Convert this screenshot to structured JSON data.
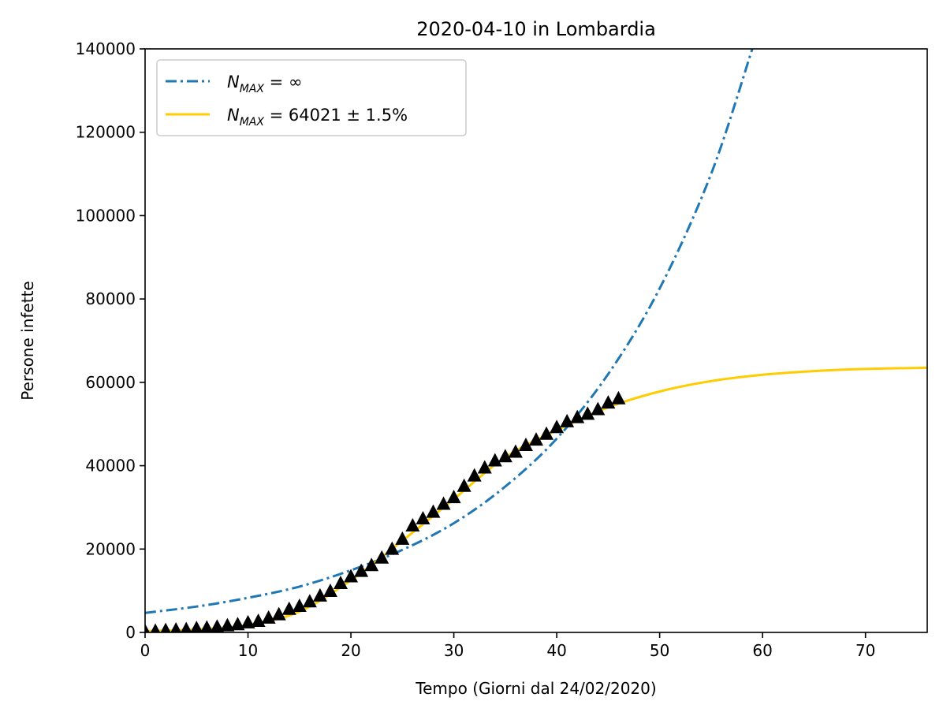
{
  "chart_data": {
    "type": "line",
    "title": "2020-04-10 in Lombardia",
    "xlabel": "Tempo (Giorni dal 24/02/2020)",
    "ylabel": "Persone infette",
    "xlim": [
      0,
      76
    ],
    "ylim": [
      0,
      140000
    ],
    "xticks": [
      0,
      10,
      20,
      30,
      40,
      50,
      60,
      70
    ],
    "yticks": [
      0,
      20000,
      40000,
      60000,
      80000,
      100000,
      120000,
      140000
    ],
    "grid": false,
    "legend_position": "top-left",
    "series": [
      {
        "name_main": "N",
        "name_sub": "MAX",
        "name_rest": " = ∞",
        "style": "dashdot",
        "color": "#1f77b4",
        "x": [
          0,
          5,
          10,
          15,
          20,
          25,
          30,
          35,
          40,
          45,
          50,
          55,
          59
        ],
        "y": [
          4700,
          6200,
          8300,
          11000,
          14900,
          19800,
          26200,
          35000,
          46500,
          62000,
          82500,
          110000,
          140000
        ]
      },
      {
        "name_main": "N",
        "name_sub": "MAX",
        "name_rest": " = 64021 ± 1.5%",
        "style": "solid",
        "color": "#ffcc00",
        "x": [
          0,
          5,
          10,
          15,
          20,
          25,
          30,
          35,
          40,
          45,
          50,
          55,
          60,
          65,
          70,
          76
        ],
        "y": [
          300,
          700,
          1800,
          5000,
          12500,
          22000,
          32000,
          42000,
          48500,
          54000,
          57800,
          60300,
          61800,
          62700,
          63200,
          63500
        ]
      }
    ],
    "observed": {
      "marker": "triangle",
      "color": "#000000",
      "x": [
        0,
        1,
        2,
        3,
        4,
        5,
        6,
        7,
        8,
        9,
        10,
        11,
        12,
        13,
        14,
        15,
        16,
        17,
        18,
        19,
        20,
        21,
        22,
        23,
        24,
        25,
        26,
        27,
        28,
        29,
        30,
        31,
        32,
        33,
        34,
        35,
        36,
        37,
        38,
        39,
        40,
        41,
        42,
        43,
        44,
        45,
        46
      ],
      "y": [
        170,
        240,
        400,
        530,
        620,
        890,
        1000,
        1250,
        1550,
        1800,
        2250,
        2600,
        3400,
        4200,
        5500,
        6200,
        7300,
        8700,
        9800,
        11700,
        13300,
        14600,
        16000,
        17800,
        19900,
        22300,
        25500,
        27200,
        28800,
        30700,
        32300,
        35000,
        37500,
        39400,
        41100,
        42100,
        43200,
        44800,
        46100,
        47500,
        49100,
        50500,
        51500,
        52300,
        53400,
        55000,
        56000
      ]
    }
  }
}
